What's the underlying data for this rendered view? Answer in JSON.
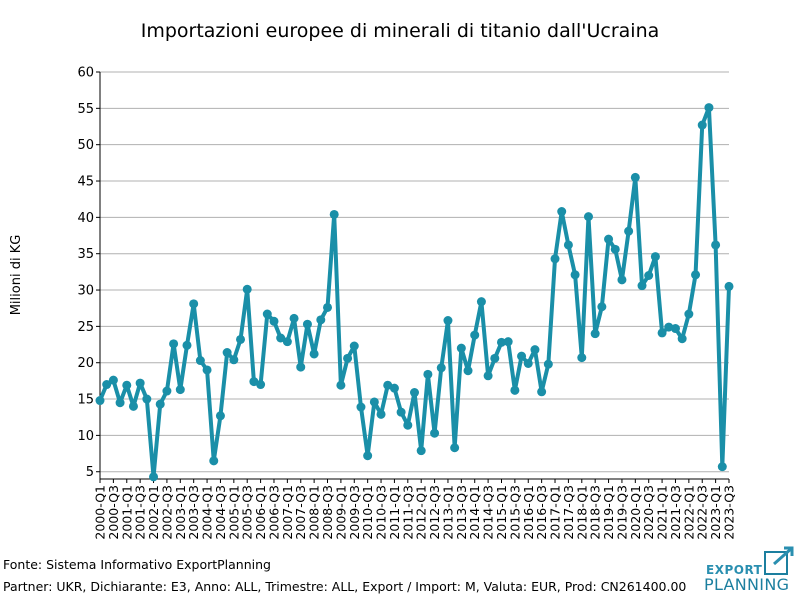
{
  "chart_data": {
    "type": "line",
    "title": "Importazioni europee di minerali di titanio dall'Ucraina",
    "ylabel": "Milioni di KG",
    "xlabel": "",
    "ylim": [
      4,
      60
    ],
    "yticks": [
      5,
      10,
      15,
      20,
      25,
      30,
      35,
      40,
      45,
      50,
      55,
      60
    ],
    "grid": true,
    "line_color": "#1a8fa8",
    "categories": [
      "2000-Q1",
      "2000-Q2",
      "2000-Q3",
      "2000-Q4",
      "2001-Q1",
      "2001-Q2",
      "2001-Q3",
      "2001-Q4",
      "2002-Q1",
      "2002-Q2",
      "2002-Q3",
      "2002-Q4",
      "2003-Q1",
      "2003-Q2",
      "2003-Q3",
      "2003-Q4",
      "2004-Q1",
      "2004-Q2",
      "2004-Q3",
      "2004-Q4",
      "2005-Q1",
      "2005-Q2",
      "2005-Q3",
      "2005-Q4",
      "2006-Q1",
      "2006-Q2",
      "2006-Q3",
      "2006-Q4",
      "2007-Q1",
      "2007-Q2",
      "2007-Q3",
      "2007-Q4",
      "2008-Q1",
      "2008-Q2",
      "2008-Q3",
      "2008-Q4",
      "2009-Q1",
      "2009-Q2",
      "2009-Q3",
      "2009-Q4",
      "2010-Q1",
      "2010-Q2",
      "2010-Q3",
      "2010-Q4",
      "2011-Q1",
      "2011-Q2",
      "2011-Q3",
      "2011-Q4",
      "2012-Q1",
      "2012-Q2",
      "2012-Q3",
      "2012-Q4",
      "2013-Q1",
      "2013-Q2",
      "2013-Q3",
      "2013-Q4",
      "2014-Q1",
      "2014-Q2",
      "2014-Q3",
      "2014-Q4",
      "2015-Q1",
      "2015-Q2",
      "2015-Q3",
      "2015-Q4",
      "2016-Q1",
      "2016-Q2",
      "2016-Q3",
      "2016-Q4",
      "2017-Q1",
      "2017-Q2",
      "2017-Q3",
      "2017-Q4",
      "2018-Q1",
      "2018-Q2",
      "2018-Q3",
      "2018-Q4",
      "2019-Q1",
      "2019-Q2",
      "2019-Q3",
      "2019-Q4",
      "2020-Q1",
      "2020-Q2",
      "2020-Q3",
      "2020-Q4",
      "2021-Q1",
      "2021-Q2",
      "2021-Q3",
      "2021-Q4",
      "2022-Q1",
      "2022-Q2",
      "2022-Q3",
      "2022-Q4",
      "2023-Q1",
      "2023-Q2",
      "2023-Q3"
    ],
    "tick_labels": [
      "2000-Q1",
      "2000-Q3",
      "2001-Q1",
      "2001-Q3",
      "2002-Q1",
      "2002-Q3",
      "2003-Q1",
      "2003-Q3",
      "2004-Q1",
      "2004-Q3",
      "2005-Q1",
      "2005-Q3",
      "2006-Q1",
      "2006-Q3",
      "2007-Q1",
      "2007-Q3",
      "2008-Q1",
      "2008-Q3",
      "2009-Q1",
      "2009-Q3",
      "2010-Q1",
      "2010-Q3",
      "2011-Q1",
      "2011-Q3",
      "2012-Q1",
      "2012-Q3",
      "2013-Q1",
      "2013-Q3",
      "2014-Q1",
      "2014-Q3",
      "2015-Q1",
      "2015-Q3",
      "2016-Q1",
      "2016-Q3",
      "2017-Q1",
      "2017-Q3",
      "2018-Q1",
      "2018-Q3",
      "2019-Q1",
      "2019-Q3",
      "2020-Q1",
      "2020-Q3",
      "2021-Q1",
      "2021-Q3",
      "2022-Q1",
      "2022-Q3",
      "2023-Q1",
      "2023-Q3"
    ],
    "series": [
      {
        "values": [
          14.8,
          17.0,
          17.6,
          14.5,
          16.9,
          14.0,
          17.2,
          15.0,
          4.3,
          14.3,
          16.1,
          22.6,
          16.3,
          22.4,
          28.1,
          20.3,
          19.0,
          6.5,
          12.7,
          21.4,
          20.4,
          23.2,
          30.1,
          17.4,
          17.0,
          26.7,
          25.7,
          23.4,
          22.9,
          26.1,
          19.4,
          25.3,
          21.2,
          25.9,
          27.6,
          40.4,
          16.9,
          20.6,
          22.3,
          13.9,
          7.2,
          14.6,
          12.9,
          16.9,
          16.5,
          13.2,
          11.4,
          15.9,
          7.9,
          18.4,
          10.3,
          19.3,
          25.8,
          8.3,
          22.0,
          18.9,
          23.8,
          28.4,
          18.2,
          20.6,
          22.8,
          22.9,
          16.2,
          20.9,
          19.9,
          21.8,
          16.0,
          19.8,
          34.3,
          40.8,
          36.2,
          32.1,
          20.7,
          40.1,
          24.0,
          27.7,
          37.0,
          35.6,
          31.4,
          38.1,
          45.5,
          30.6,
          32.0,
          34.6,
          24.1,
          24.9,
          24.7,
          23.3,
          26.7,
          32.1,
          52.7,
          55.1,
          36.2,
          5.7,
          30.5
        ]
      }
    ]
  },
  "footer": {
    "source": "Fonte: Sistema Informativo ExportPlanning",
    "params": "Partner: UKR, Dichiarante: E3, Anno: ALL, Trimestre: ALL, Export / Import: M, Valuta: EUR, Prod: CN261400.00"
  },
  "logo": {
    "line1": "EXPORT",
    "line2": "PLANNING",
    "color": "#1c7f9f"
  }
}
